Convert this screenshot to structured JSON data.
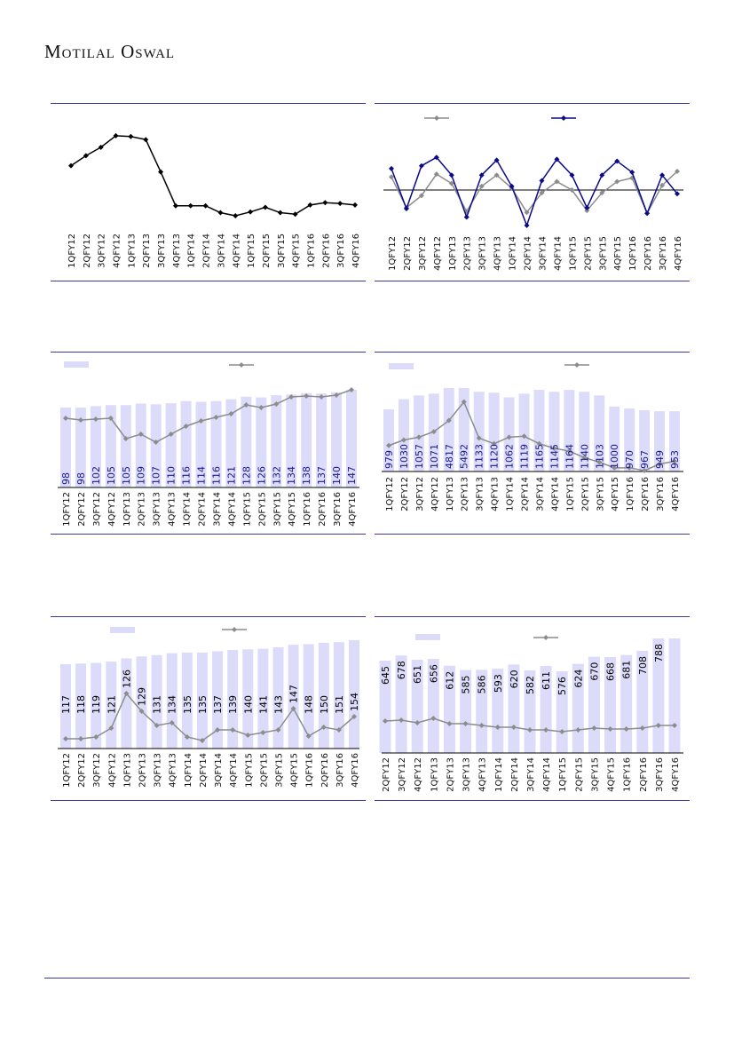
{
  "logo": "Motilal Oswal",
  "colors": {
    "bar": "#dcdcfa",
    "line_gray": "#8c8c8c",
    "line_blue": "#0a0a8a",
    "line_black": "#000000",
    "label_blue": "#1a1a8c",
    "rule": "#3b3b9e"
  },
  "chart_data": [
    {
      "type": "line",
      "categories": [
        "1QFY12",
        "2QFY12",
        "3QFY12",
        "4QFY12",
        "1QFY13",
        "2QFY13",
        "3QFY13",
        "4QFY13",
        "1QFY14",
        "2QFY14",
        "3QFY14",
        "4QFY14",
        "1QFY15",
        "2QFY15",
        "3QFY15",
        "4QFY15",
        "1QFY16",
        "2QFY16",
        "3QFY16",
        "4QFY16"
      ],
      "series": [
        {
          "name": "",
          "values": [
            80,
            93,
            104,
            119,
            118,
            114,
            72,
            28,
            28,
            28,
            19,
            15,
            20,
            26,
            19,
            17,
            29,
            32,
            31,
            29
          ]
        }
      ],
      "ylim": [
        0,
        120
      ]
    },
    {
      "type": "line",
      "categories": [
        "1QFY12",
        "2QFY12",
        "3QFY12",
        "4QFY12",
        "1QFY13",
        "2QFY13",
        "3QFY13",
        "4QFY13",
        "1QFY14",
        "2QFY14",
        "3QFY14",
        "4QFY14",
        "1QFY15",
        "2QFY15",
        "3QFY15",
        "4QFY15",
        "1QFY16",
        "2QFY16",
        "3QFY16",
        "4QFY16"
      ],
      "series": [
        {
          "name": "",
          "color": "gray",
          "values": [
            24,
            -9,
            4,
            27,
            17,
            -13,
            14,
            26,
            12,
            -14,
            7,
            19,
            10,
            -12,
            7,
            19,
            23,
            -15,
            15,
            30
          ]
        },
        {
          "name": "",
          "color": "blue",
          "values": [
            33,
            -10,
            36,
            45,
            26,
            -19,
            26,
            42,
            14,
            -28,
            20,
            43,
            26,
            -9,
            26,
            41,
            29,
            -15,
            26,
            6
          ]
        }
      ],
      "ylim": [
        -30,
        50
      ]
    },
    {
      "type": "bar+line",
      "categories": [
        "1QFY12",
        "2QFY12",
        "3QFY12",
        "4QFY12",
        "1QFY13",
        "2QFY13",
        "3QFY13",
        "4QFY13",
        "1QFY14",
        "2QFY14",
        "3QFY14",
        "4QFY14",
        "1QFY15",
        "2QFY15",
        "3QFY15",
        "4QFY15",
        "1QFY16",
        "2QFY16",
        "3QFY16",
        "4QFY16"
      ],
      "bars": [
        98,
        98,
        102,
        105,
        105,
        109,
        107,
        110,
        116,
        114,
        116,
        121,
        128,
        126,
        132,
        134,
        138,
        137,
        140,
        147
      ],
      "bar_ylim": [
        -122,
        147
      ],
      "line": [
        78,
        76,
        77,
        78,
        55,
        60,
        51,
        60,
        69,
        75,
        79,
        83,
        93,
        90,
        94,
        102,
        103,
        102,
        104,
        110
      ],
      "line_ylim": [
        0,
        110
      ]
    },
    {
      "type": "bar+line",
      "categories": [
        "1QFY12",
        "2QFY12",
        "3QFY12",
        "4QFY12",
        "1QFY13",
        "2QFY13",
        "3QFY13",
        "4QFY13",
        "1QFY14",
        "2QFY14",
        "3QFY14",
        "4QFY14",
        "1QFY15",
        "2QFY15",
        "3QFY15",
        "4QFY15",
        "1QFY16",
        "2QFY16",
        "3QFY16",
        "4QFY16"
      ],
      "labels": [
        "979",
        "1030",
        "1057",
        "1071",
        "4817",
        "5492",
        "1133",
        "1120",
        "1062",
        "1119",
        "1165",
        "1145",
        "1164",
        "1140",
        "1103",
        "1000",
        "970",
        "967",
        "949",
        "953"
      ],
      "bars": [
        67,
        78,
        82,
        84,
        90,
        90,
        86,
        85,
        80,
        84,
        88,
        86,
        88,
        86,
        82,
        70,
        68,
        66,
        65,
        65
      ],
      "bar_ylim": [
        0,
        90
      ],
      "line": [
        28,
        34,
        37,
        43,
        55,
        75,
        36,
        30,
        37,
        38,
        30,
        25,
        22,
        15,
        10,
        4,
        4,
        1,
        8,
        11
      ],
      "line_ylim": [
        0,
        90
      ]
    },
    {
      "type": "bar+line",
      "categories": [
        "1QFY12",
        "2QFY12",
        "3QFY12",
        "4QFY12",
        "1QFY13",
        "2QFY13",
        "3QFY13",
        "4QFY13",
        "1QFY14",
        "2QFY14",
        "3QFY14",
        "4QFY14",
        "1QFY15",
        "2QFY15",
        "3QFY15",
        "4QFY15",
        "1QFY16",
        "2QFY16",
        "3QFY16",
        "4QFY16"
      ],
      "bars": [
        117,
        118,
        119,
        121,
        126,
        129,
        131,
        134,
        135,
        135,
        137,
        139,
        140,
        141,
        143,
        147,
        148,
        150,
        151,
        154
      ],
      "bar_ylim": [
        -13,
        154
      ],
      "line": [
        11,
        11,
        13,
        23,
        62,
        42,
        26,
        29,
        13,
        9,
        21,
        21,
        15,
        18,
        21,
        45,
        14,
        24,
        21,
        36
      ],
      "line_ylim": [
        0,
        122
      ]
    },
    {
      "type": "bar+line",
      "categories": [
        "2QFY12",
        "3QFY12",
        "4QFY12",
        "1QFY13",
        "2QFY13",
        "3QFY13",
        "4QFY13",
        "1QFY14",
        "2QFY14",
        "3QFY14",
        "4QFY14",
        "1QFY15",
        "2QFY15",
        "3QFY15",
        "4QFY15",
        "1QFY16",
        "2QFY16",
        "3QFY16",
        "4QFY16"
      ],
      "bars": [
        645,
        678,
        651,
        656,
        612,
        585,
        586,
        593,
        620,
        582,
        611,
        576,
        624,
        670,
        668,
        681,
        708,
        788,
        788
      ],
      "labels": [
        "645",
        "678",
        "651",
        "656",
        "612",
        "585",
        "586",
        "593",
        "620",
        "582",
        "611",
        "576",
        "624",
        "670",
        "668",
        "681",
        "708",
        "788",
        ""
      ],
      "bar_ylim": [
        50,
        788
      ],
      "line": [
        36,
        37,
        34,
        39,
        33,
        33,
        31,
        29,
        29,
        26,
        26,
        24,
        26,
        28,
        27,
        27,
        28,
        31,
        31
      ],
      "line_ylim": [
        0,
        129
      ]
    }
  ]
}
